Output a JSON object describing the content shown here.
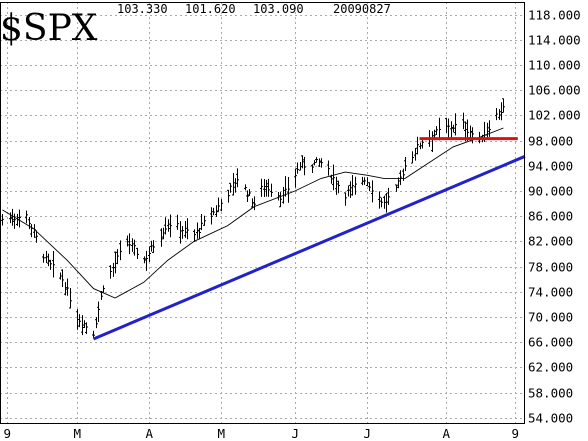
{
  "header": {
    "symbol": "$SPX",
    "high": "103.330",
    "low": "101.620",
    "close": "103.090",
    "date": "20090827"
  },
  "colors": {
    "bars": "#000000",
    "grid": "#aaaaaa",
    "trendline": "#2222cc",
    "resistance": "#dd1111",
    "moving_average": "#000000"
  },
  "chart_data": {
    "type": "ohlc-bar",
    "title": "$SPX",
    "price_scale": "divided by 10 (e.g. 103.090 = 1030.90)",
    "ylim": [
      53,
      120
    ],
    "y_ticks": [
      "118.000",
      "114.000",
      "110.000",
      "106.000",
      "102.000",
      "98.000",
      "94.000",
      "90.000",
      "86.000",
      "82.000",
      "78.000",
      "74.000",
      "70.000",
      "66.000",
      "62.000",
      "58.000",
      "54.000"
    ],
    "x_ticks": [
      {
        "label": "9",
        "date": "2009-02-01"
      },
      {
        "label": "M",
        "date": "2009-03-02"
      },
      {
        "label": "A",
        "date": "2009-04-01"
      },
      {
        "label": "M",
        "date": "2009-05-01"
      },
      {
        "label": "J",
        "date": "2009-06-01"
      },
      {
        "label": "J",
        "date": "2009-07-01"
      },
      {
        "label": "A",
        "date": "2009-08-03"
      },
      {
        "label": "9",
        "date": "2009-09-01"
      }
    ],
    "xlim": [
      "2009-01-29",
      "2009-09-05"
    ],
    "close_anchors": [
      [
        "2009-01-30",
        85.5
      ],
      [
        "2009-02-09",
        86.0
      ],
      [
        "2009-02-17",
        79.0
      ],
      [
        "2009-02-24",
        76.0
      ],
      [
        "2009-03-02",
        70.0
      ],
      [
        "2009-03-09",
        67.5
      ],
      [
        "2009-03-13",
        75.0
      ],
      [
        "2009-03-23",
        82.0
      ],
      [
        "2009-03-30",
        79.0
      ],
      [
        "2009-04-09",
        85.0
      ],
      [
        "2009-04-20",
        83.0
      ],
      [
        "2009-04-30",
        87.5
      ],
      [
        "2009-05-08",
        92.0
      ],
      [
        "2009-05-15",
        88.0
      ],
      [
        "2009-05-19",
        91.0
      ],
      [
        "2009-05-27",
        89.0
      ],
      [
        "2009-06-03",
        94.0
      ],
      [
        "2009-06-12",
        94.5
      ],
      [
        "2009-06-22",
        89.5
      ],
      [
        "2009-06-30",
        92.0
      ],
      [
        "2009-07-08",
        88.0
      ],
      [
        "2009-07-13",
        90.0
      ],
      [
        "2009-07-17",
        94.0
      ],
      [
        "2009-07-24",
        98.0
      ],
      [
        "2009-08-03",
        100.0
      ],
      [
        "2009-08-10",
        100.5
      ],
      [
        "2009-08-17",
        98.0
      ],
      [
        "2009-08-24",
        102.0
      ],
      [
        "2009-08-27",
        103.09
      ]
    ],
    "moving_average": {
      "label": "",
      "points": [
        [
          "2009-01-30",
          87.0
        ],
        [
          "2009-02-12",
          84.0
        ],
        [
          "2009-02-26",
          79.0
        ],
        [
          "2009-03-09",
          74.5
        ],
        [
          "2009-03-18",
          73.0
        ],
        [
          "2009-03-30",
          75.5
        ],
        [
          "2009-04-09",
          79.0
        ],
        [
          "2009-04-20",
          82.0
        ],
        [
          "2009-05-04",
          84.5
        ],
        [
          "2009-05-15",
          87.5
        ],
        [
          "2009-06-01",
          90.0
        ],
        [
          "2009-06-12",
          92.0
        ],
        [
          "2009-06-22",
          93.0
        ],
        [
          "2009-07-01",
          92.5
        ],
        [
          "2009-07-08",
          92.0
        ],
        [
          "2009-07-17",
          92.0
        ],
        [
          "2009-07-27",
          94.5
        ],
        [
          "2009-08-06",
          97.0
        ],
        [
          "2009-08-17",
          98.5
        ],
        [
          "2009-08-27",
          100.0
        ]
      ]
    },
    "trendline": {
      "label": "",
      "start": [
        "2009-03-09",
        66.5
      ],
      "end": [
        "2009-09-05",
        95.5
      ]
    },
    "resistance_line": {
      "label": "",
      "start": [
        "2009-07-23",
        98.3
      ],
      "end": [
        "2009-09-02",
        98.3
      ]
    }
  }
}
